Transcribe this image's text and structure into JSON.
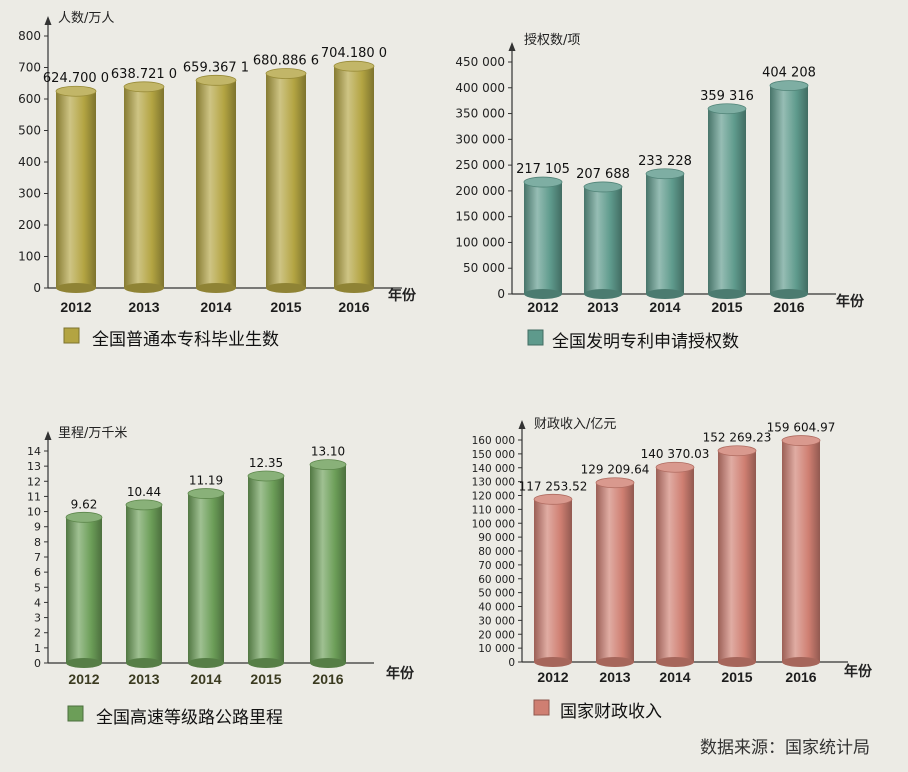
{
  "source_text": "数据来源：国家统计局",
  "chart_data": [
    {
      "type": "bar",
      "ylabel": "人数/万人",
      "xlabel": "年份",
      "categories": [
        "2012",
        "2013",
        "2014",
        "2015",
        "2016"
      ],
      "values": [
        624.7,
        638.721,
        659.3671,
        680.8866,
        704.18
      ],
      "value_labels": [
        "624.700 0",
        "638.721 0",
        "659.367 1",
        "680.886 6",
        "704.180 0"
      ],
      "yticks": [
        "0",
        "100",
        "200",
        "300",
        "400",
        "500",
        "600",
        "700",
        "800"
      ],
      "ylim": [
        0,
        800
      ],
      "legend": "全国普通本专科毕业生数",
      "color": "#b3a442"
    },
    {
      "type": "bar",
      "ylabel": "授权数/项",
      "xlabel": "年份",
      "categories": [
        "2012",
        "2013",
        "2014",
        "2015",
        "2016"
      ],
      "values": [
        217105,
        207688,
        233228,
        359316,
        404208
      ],
      "value_labels": [
        "217 105",
        "207 688",
        "233 228",
        "359 316",
        "404 208"
      ],
      "yticks": [
        "0",
        "50 000",
        "100 000",
        "150 000",
        "200 000",
        "250 000",
        "300 000",
        "350 000",
        "400 000",
        "450 000"
      ],
      "ylim": [
        0,
        450000
      ],
      "legend": "全国发明专利申请授权数",
      "color": "#5e9a8c"
    },
    {
      "type": "bar",
      "ylabel": "里程/万千米",
      "xlabel": "年份",
      "categories": [
        "2012",
        "2013",
        "2014",
        "2015",
        "2016"
      ],
      "values": [
        9.62,
        10.44,
        11.19,
        12.35,
        13.1
      ],
      "value_labels": [
        "9.62",
        "10.44",
        "11.19",
        "12.35",
        "13.10"
      ],
      "yticks": [
        "0",
        "1",
        "2",
        "3",
        "4",
        "5",
        "6",
        "7",
        "8",
        "9",
        "10",
        "11",
        "12",
        "13",
        "14"
      ],
      "ylim": [
        0,
        14
      ],
      "legend": "全国高速等级路公路里程",
      "color": "#6c9e58"
    },
    {
      "type": "bar",
      "ylabel": "财政收入/亿元",
      "xlabel": "年份",
      "categories": [
        "2012",
        "2013",
        "2014",
        "2015",
        "2016"
      ],
      "values": [
        117253.52,
        129209.64,
        140370.03,
        152269.23,
        159604.97
      ],
      "value_labels": [
        "117 253.52",
        "129 209.64",
        "140 370.03",
        "152 269.23",
        "159 604.97"
      ],
      "yticks": [
        "0",
        "10 000",
        "20 000",
        "30 000",
        "40 000",
        "50 000",
        "60 000",
        "70 000",
        "80 000",
        "90 000",
        "100 000",
        "110 000",
        "120 000",
        "130 000",
        "140 000",
        "150 000",
        "160 000"
      ],
      "ylim": [
        0,
        160000
      ],
      "legend": "国家财政收入",
      "color": "#cf7f72"
    }
  ]
}
